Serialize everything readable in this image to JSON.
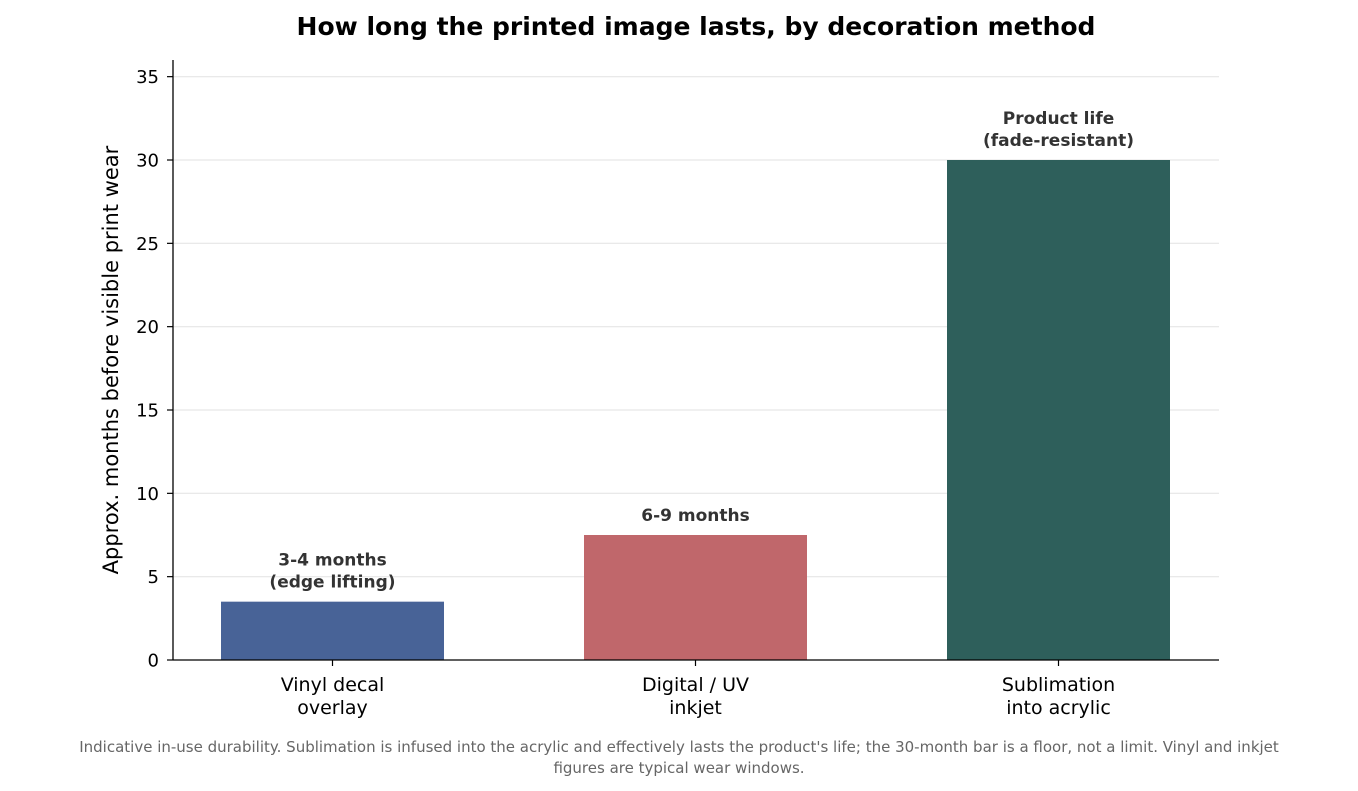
{
  "chart_data": {
    "type": "bar",
    "title": "How long the printed image lasts, by decoration method",
    "xlabel": "",
    "ylabel": "Approx. months before visible print wear",
    "ylim": [
      0,
      36
    ],
    "yticks": [
      0,
      5,
      10,
      15,
      20,
      25,
      30,
      35
    ],
    "grid": "horizontal",
    "categories": [
      [
        "Vinyl decal",
        "overlay"
      ],
      [
        "Digital / UV",
        "inkjet"
      ],
      [
        "Sublimation",
        "into acrylic"
      ]
    ],
    "values": [
      3.5,
      7.5,
      30
    ],
    "colors": [
      "#486397",
      "#c0676b",
      "#2e5f5b"
    ],
    "data_labels": [
      [
        "3-4 months",
        "(edge lifting)"
      ],
      [
        "6-9 months"
      ],
      [
        "Product life",
        "(fade-resistant)"
      ]
    ]
  },
  "footnote": [
    "Indicative in-use durability. Sublimation is infused into the acrylic and effectively lasts the product's life; the 30-month bar is a floor, not a limit. Vinyl and inkjet",
    "figures are typical wear windows."
  ]
}
